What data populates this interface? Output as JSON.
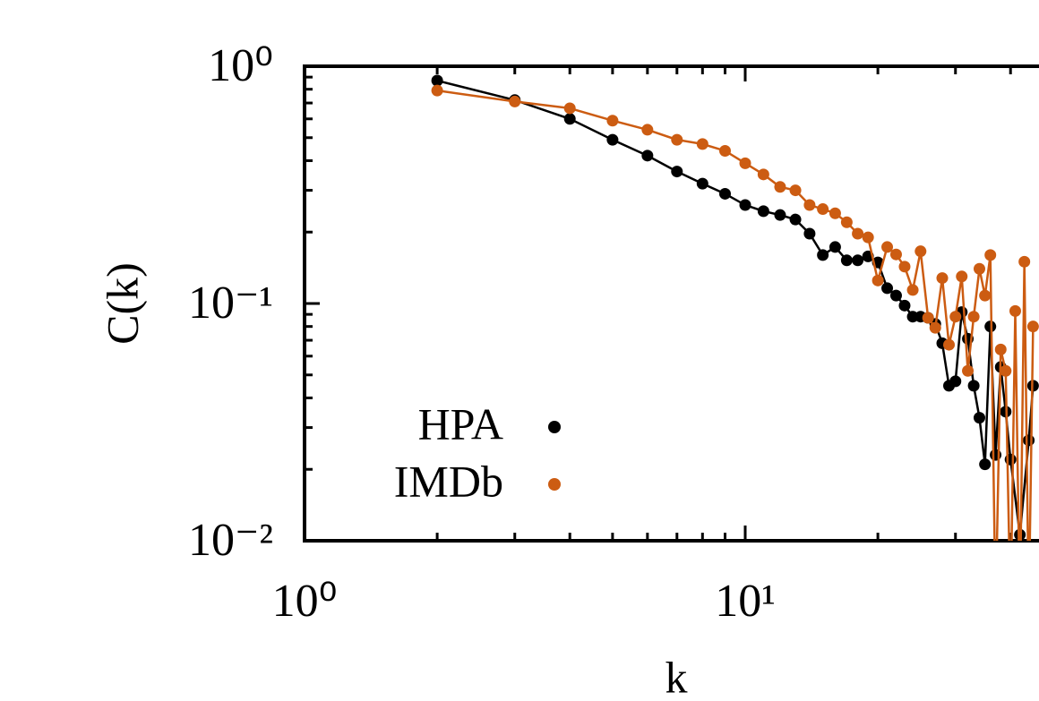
{
  "chart_data": {
    "type": "line",
    "xlabel": "k",
    "ylabel": "C(k)",
    "xscale": "log",
    "yscale": "log",
    "xlim": [
      1,
      46.4
    ],
    "ylim": [
      0.01,
      1
    ],
    "xticks": [
      {
        "value": 1,
        "label": "10⁰"
      },
      {
        "value": 10,
        "label": "10¹"
      }
    ],
    "yticks": [
      {
        "value": 0.01,
        "label": "10⁻²"
      },
      {
        "value": 0.1,
        "label": "10⁻¹"
      },
      {
        "value": 1,
        "label": "10⁰"
      }
    ],
    "legend": "lower left",
    "series": [
      {
        "name": "HPA",
        "color": "#000000",
        "x": [
          2,
          3,
          4,
          5,
          6,
          7,
          8,
          9,
          10,
          11,
          12,
          13,
          14,
          15,
          16,
          17,
          18,
          19,
          20,
          21,
          22,
          23,
          24,
          25,
          26,
          27,
          28,
          29,
          30,
          31,
          32,
          33,
          34,
          35,
          36,
          37,
          38,
          39,
          40,
          42,
          44,
          45
        ],
        "values": [
          0.87,
          0.72,
          0.6,
          0.49,
          0.42,
          0.36,
          0.32,
          0.29,
          0.26,
          0.245,
          0.236,
          0.226,
          0.197,
          0.16,
          0.173,
          0.152,
          0.152,
          0.158,
          0.149,
          0.116,
          0.108,
          0.098,
          0.088,
          0.088,
          0.087,
          0.082,
          0.068,
          0.045,
          0.047,
          0.092,
          0.071,
          0.045,
          0.033,
          0.021,
          0.08,
          0.023,
          0.054,
          0.035,
          0.022,
          0.0106,
          0.0265,
          0.045
        ]
      },
      {
        "name": "IMDb",
        "color": "#cc5c12",
        "x": [
          2,
          3,
          4,
          5,
          6,
          7,
          8,
          9,
          10,
          11,
          12,
          13,
          14,
          15,
          16,
          17,
          18,
          19,
          20,
          21,
          22,
          23,
          24,
          25,
          26,
          27,
          28,
          29,
          30,
          31,
          32,
          33,
          34,
          35,
          36,
          37,
          38,
          39,
          40,
          41,
          42,
          43,
          44,
          45
        ],
        "values": [
          0.79,
          0.71,
          0.665,
          0.59,
          0.54,
          0.49,
          0.47,
          0.44,
          0.39,
          0.35,
          0.31,
          0.3,
          0.26,
          0.25,
          0.24,
          0.22,
          0.197,
          0.19,
          0.125,
          0.173,
          0.161,
          0.143,
          0.114,
          0.166,
          0.087,
          0.079,
          0.128,
          0.067,
          0.088,
          0.13,
          0.052,
          0.088,
          0.14,
          0.108,
          0.16,
          0.005,
          0.064,
          0.052,
          0.005,
          0.093,
          0.005,
          0.15,
          0.005,
          0.08
        ]
      }
    ]
  }
}
